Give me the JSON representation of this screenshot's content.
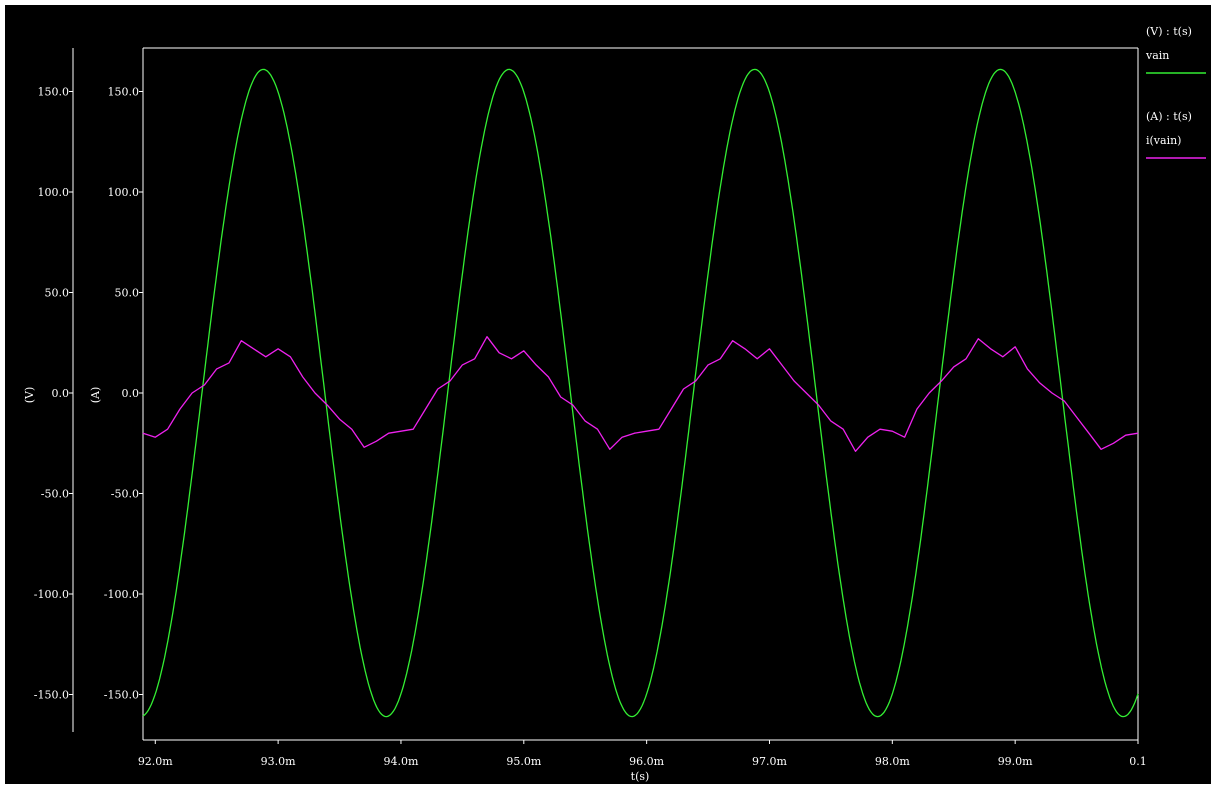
{
  "chart_data": {
    "type": "line",
    "xlabel": "t(s)",
    "x_range": [
      0.0919,
      0.1
    ],
    "x_ticks": [
      {
        "value": 0.092,
        "label": "92.0m"
      },
      {
        "value": 0.093,
        "label": "93.0m"
      },
      {
        "value": 0.094,
        "label": "94.0m"
      },
      {
        "value": 0.095,
        "label": "95.0m"
      },
      {
        "value": 0.096,
        "label": "96.0m"
      },
      {
        "value": 0.097,
        "label": "97.0m"
      },
      {
        "value": 0.098,
        "label": "98.0m"
      },
      {
        "value": 0.099,
        "label": "99.0m"
      },
      {
        "value": 0.1,
        "label": "0.1"
      }
    ],
    "y_axes": [
      {
        "label": "(V)",
        "ticks": [
          "150.0",
          "100.0",
          "50.0",
          "0.0",
          "-50.0",
          "-100.0",
          "-150.0"
        ]
      },
      {
        "label": "(A)",
        "ticks": [
          "150.0",
          "100.0",
          "50.0",
          "0.0",
          "-50.0",
          "-100.0",
          "-150.0"
        ]
      }
    ],
    "y_tick_values": [
      150,
      100,
      50,
      0,
      -50,
      -100,
      -150
    ],
    "ylim": [
      -175,
      175
    ],
    "grid": false,
    "legend_position": "right",
    "series": [
      {
        "name": "vain",
        "legend_header": "(V) : t(s)",
        "color": "#33ee33",
        "amplitude": 161,
        "frequency_hz": 500,
        "peak_times": [
          0.09288,
          0.09488,
          0.09688,
          0.09888
        ],
        "x": [
          0.0919,
          0.0921,
          0.0923,
          0.0925,
          0.0927,
          0.0929,
          0.0931,
          0.0933,
          0.0935,
          0.0937,
          0.0939,
          0.0941,
          0.0943,
          0.0945,
          0.0947,
          0.0949,
          0.0951,
          0.0953,
          0.0955,
          0.0957,
          0.0959,
          0.0961,
          0.0963,
          0.0965,
          0.0967,
          0.0969,
          0.0971,
          0.0973,
          0.0975,
          0.0977,
          0.0979,
          0.0981,
          0.0983,
          0.0985,
          0.0987,
          0.0989,
          0.0991,
          0.0993,
          0.0995,
          0.0997,
          0.0999,
          0.1
        ],
        "y": [
          -158,
          -100,
          -5,
          92,
          150,
          161,
          130,
          52,
          -48,
          -130,
          -160,
          -130,
          -52,
          48,
          130,
          161,
          130,
          52,
          -48,
          -130,
          -160,
          -130,
          -52,
          48,
          130,
          161,
          130,
          52,
          -48,
          -130,
          -160,
          -130,
          -52,
          48,
          130,
          161,
          130,
          52,
          -48,
          -130,
          -160,
          -155
        ]
      },
      {
        "name": "i(vain)",
        "legend_header": "(A) : t(s)",
        "color": "#ee22ee",
        "x": [
          0.0919,
          0.092,
          0.0921,
          0.0922,
          0.0923,
          0.0924,
          0.0925,
          0.0926,
          0.0927,
          0.0928,
          0.0929,
          0.093,
          0.0931,
          0.0932,
          0.0933,
          0.0934,
          0.0935,
          0.0936,
          0.0937,
          0.0938,
          0.0939,
          0.094,
          0.0941,
          0.0942,
          0.0943,
          0.0944,
          0.0945,
          0.0946,
          0.0947,
          0.0948,
          0.0949,
          0.095,
          0.0951,
          0.0952,
          0.0953,
          0.0954,
          0.0955,
          0.0956,
          0.0957,
          0.0958,
          0.0959,
          0.096,
          0.0961,
          0.0962,
          0.0963,
          0.0964,
          0.0965,
          0.0966,
          0.0967,
          0.0968,
          0.0969,
          0.097,
          0.0971,
          0.0972,
          0.0973,
          0.0974,
          0.0975,
          0.0976,
          0.0977,
          0.0978,
          0.0979,
          0.098,
          0.0981,
          0.0982,
          0.0983,
          0.0984,
          0.0985,
          0.0986,
          0.0987,
          0.0988,
          0.0989,
          0.099,
          0.0991,
          0.0992,
          0.0993,
          0.0994,
          0.0995,
          0.0996,
          0.0997,
          0.0998,
          0.0999,
          0.1
        ],
        "y": [
          -20,
          -22,
          -18,
          -8,
          0,
          4,
          12,
          15,
          26,
          22,
          18,
          22,
          18,
          8,
          0,
          -6,
          -13,
          -18,
          -27,
          -24,
          -20,
          -19,
          -18,
          -8,
          2,
          6,
          14,
          17,
          28,
          20,
          17,
          21,
          14,
          8,
          -2,
          -6,
          -14,
          -18,
          -28,
          -22,
          -20,
          -19,
          -18,
          -8,
          2,
          6,
          14,
          17,
          26,
          22,
          17,
          22,
          14,
          6,
          0,
          -6,
          -14,
          -18,
          -29,
          -22,
          -18,
          -19,
          -22,
          -8,
          0,
          6,
          13,
          17,
          27,
          22,
          18,
          23,
          12,
          5,
          0,
          -4,
          -12,
          -20,
          -28,
          -25,
          -21,
          -20
        ]
      }
    ]
  }
}
